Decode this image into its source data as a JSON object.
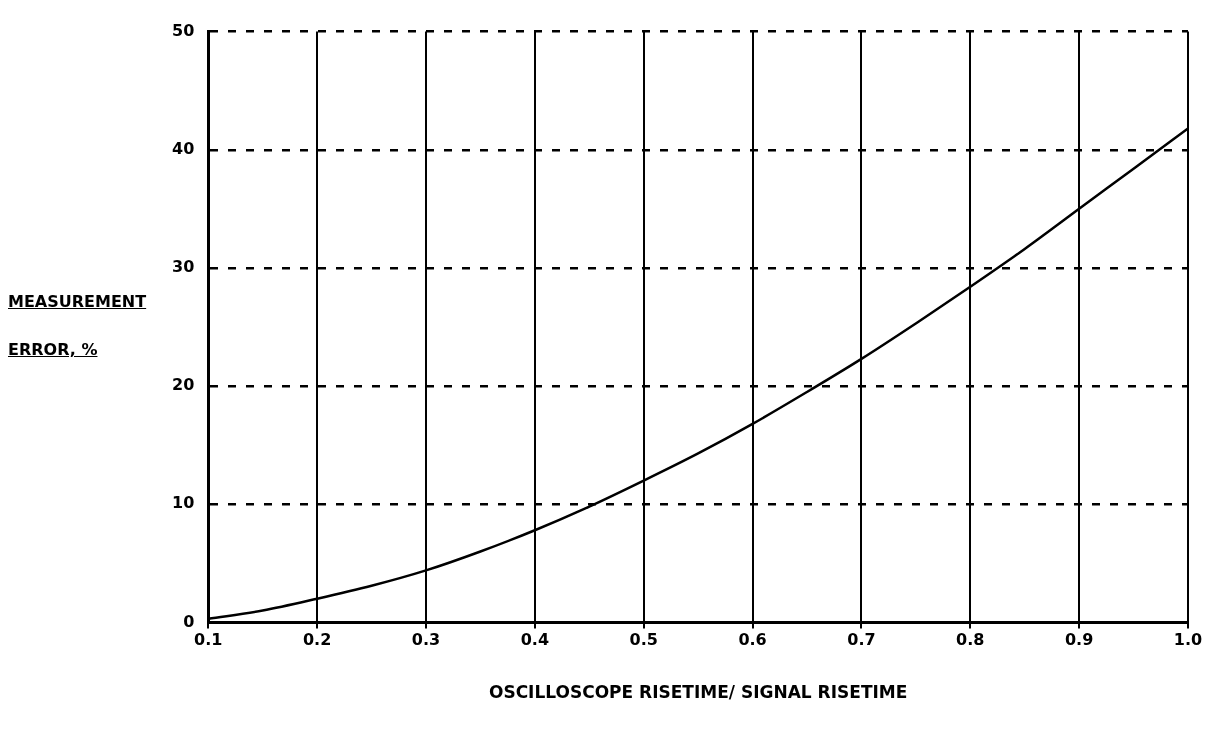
{
  "chart_data": {
    "type": "line",
    "xlabel": "OSCILLOSCOPE RISETIME/ SIGNAL RISETIME",
    "ylabel": "MEASUREMENT ERROR, %",
    "x": [
      0.1,
      0.15,
      0.2,
      0.25,
      0.3,
      0.35,
      0.4,
      0.45,
      0.5,
      0.55,
      0.6,
      0.65,
      0.7,
      0.75,
      0.8,
      0.85,
      0.9,
      0.95,
      1.0
    ],
    "series": [
      {
        "color": "#000000",
        "values": [
          0.3,
          1.0,
          2.0,
          3.1,
          4.4,
          6.0,
          7.8,
          9.8,
          12.0,
          14.3,
          16.8,
          19.5,
          22.3,
          25.3,
          28.4,
          31.6,
          35.0,
          38.4,
          41.8
        ]
      }
    ],
    "xlim": [
      0.1,
      1.0
    ],
    "xticks": [
      0.1,
      0.2,
      0.3,
      0.4,
      0.5,
      0.6,
      0.7,
      0.8,
      0.9,
      {
        "value": 1,
        "label": "1.0"
      }
    ],
    "ylim": [
      0,
      50
    ],
    "yticks": [
      0,
      10,
      20,
      30,
      40,
      50
    ],
    "grid": true,
    "legend": false,
    "marker": "none",
    "line_style": "solid"
  }
}
